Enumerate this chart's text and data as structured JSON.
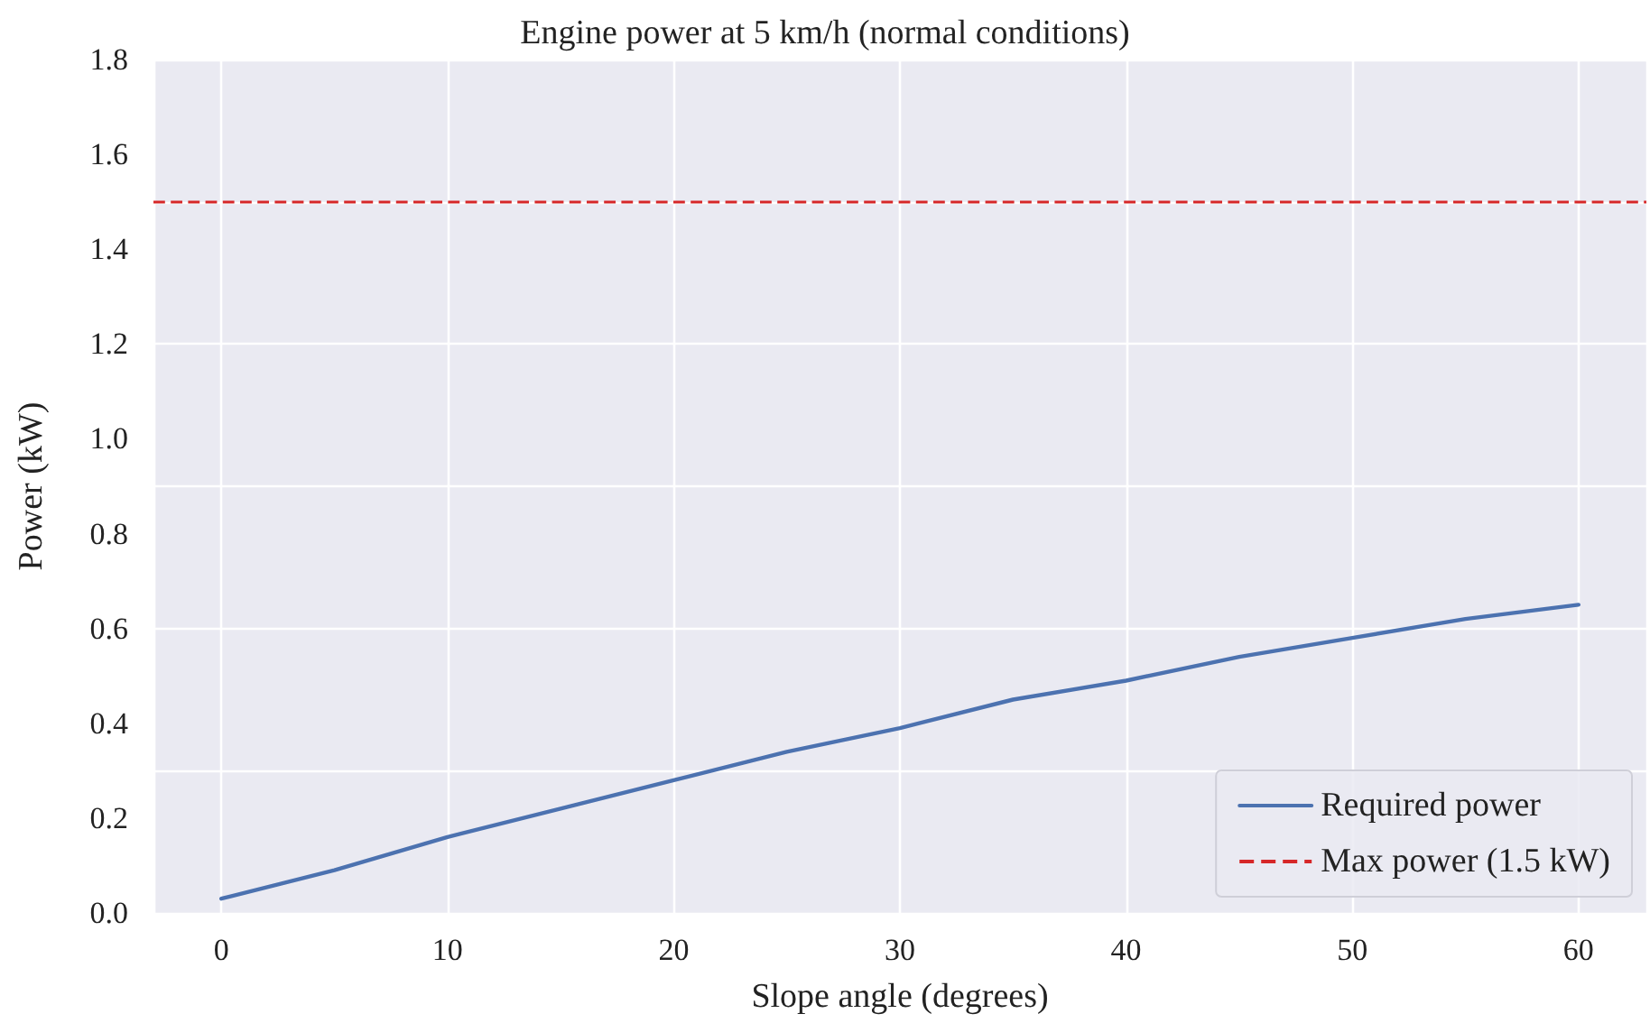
{
  "chart_data": {
    "type": "line",
    "title": "Engine power at 5 km/h (normal conditions)",
    "xlabel": "Slope angle (degrees)",
    "ylabel": "Power (kW)",
    "x": [
      0,
      5,
      10,
      15,
      20,
      25,
      30,
      35,
      40,
      45,
      50,
      55,
      60
    ],
    "series": [
      {
        "name": "Required power",
        "color": "#4c72b0",
        "values": [
          0.03,
          0.09,
          0.16,
          0.22,
          0.28,
          0.34,
          0.39,
          0.45,
          0.49,
          0.54,
          0.58,
          0.62,
          0.65
        ]
      }
    ],
    "ref_lines": [
      {
        "axis": "y",
        "value": 1.5,
        "label": "Max power (1.5 kW)",
        "color": "#d62728",
        "line_style": "dashed"
      }
    ],
    "xlim": [
      -3,
      63
    ],
    "xticks": [
      0,
      10,
      20,
      30,
      40,
      50,
      60
    ],
    "ylim": [
      0,
      1.8
    ],
    "yticks": [
      {
        "value": 0,
        "label": "0.0"
      },
      0.2,
      0.4,
      0.6,
      0.8,
      {
        "value": 1,
        "label": "1.0"
      },
      1.2,
      1.4,
      1.6,
      1.8
    ],
    "grid": true,
    "legend": "bottom right",
    "marker": "none",
    "line_style": "solid"
  }
}
